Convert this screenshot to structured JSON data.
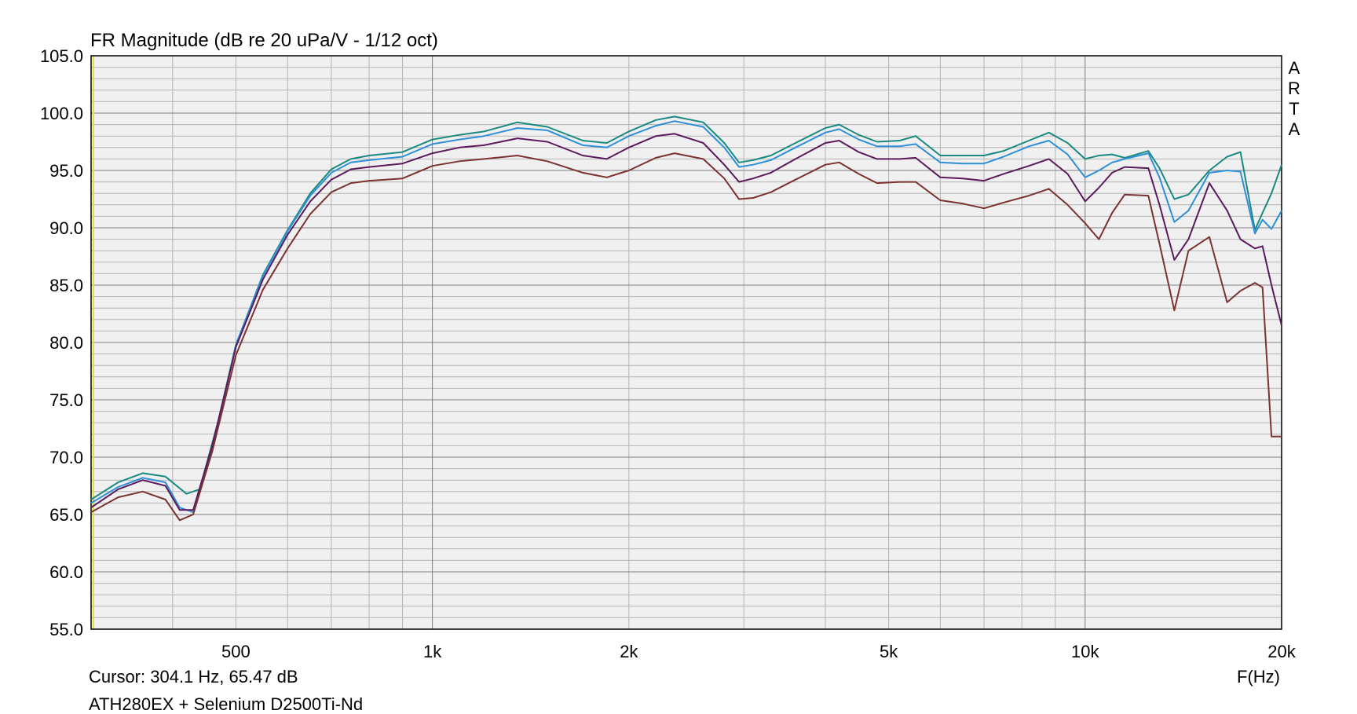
{
  "chart_data": {
    "type": "line",
    "title": "FR Magnitude (dB re 20 uPa/V - 1/12 oct)",
    "xlabel": "F(Hz)",
    "ylabel": "",
    "x_scale": "log",
    "xlim": [
      300,
      20000
    ],
    "ylim": [
      55,
      105
    ],
    "grid": true,
    "x_tick_values": [
      500,
      1000,
      2000,
      5000,
      10000,
      20000
    ],
    "x_tick_labels": [
      "500",
      "1k",
      "2k",
      "5k",
      "10k",
      "20k"
    ],
    "y_tick_values": [
      55,
      60,
      65,
      70,
      75,
      80,
      85,
      90,
      95,
      100,
      105
    ],
    "y_tick_labels": [
      "55.0",
      "60.0",
      "65.0",
      "70.0",
      "75.0",
      "80.0",
      "85.0",
      "90.0",
      "95.0",
      "100.0",
      "105.0"
    ],
    "watermark": "ARTA",
    "cursor_text": "Cursor: 304.1 Hz, 65.47 dB",
    "caption": "ATH280EX + Selenium D2500Ti-Nd",
    "series": [
      {
        "color": "#1a8a80",
        "points": [
          [
            300,
            66.3
          ],
          [
            330,
            67.8
          ],
          [
            360,
            68.6
          ],
          [
            390,
            68.3
          ],
          [
            420,
            66.8
          ],
          [
            440,
            67.2
          ],
          [
            470,
            73.2
          ],
          [
            500,
            79.8
          ],
          [
            550,
            85.9
          ],
          [
            600,
            89.8
          ],
          [
            650,
            93.0
          ],
          [
            700,
            95.1
          ],
          [
            750,
            96.0
          ],
          [
            800,
            96.3
          ],
          [
            900,
            96.6
          ],
          [
            1000,
            97.7
          ],
          [
            1100,
            98.1
          ],
          [
            1200,
            98.4
          ],
          [
            1350,
            99.2
          ],
          [
            1500,
            98.8
          ],
          [
            1700,
            97.6
          ],
          [
            1850,
            97.4
          ],
          [
            2000,
            98.4
          ],
          [
            2200,
            99.4
          ],
          [
            2350,
            99.7
          ],
          [
            2600,
            99.2
          ],
          [
            2800,
            97.4
          ],
          [
            2950,
            95.7
          ],
          [
            3100,
            95.9
          ],
          [
            3300,
            96.3
          ],
          [
            3600,
            97.4
          ],
          [
            4000,
            98.7
          ],
          [
            4200,
            99.0
          ],
          [
            4500,
            98.1
          ],
          [
            4800,
            97.5
          ],
          [
            5200,
            97.6
          ],
          [
            5500,
            98.0
          ],
          [
            6000,
            96.3
          ],
          [
            6500,
            96.3
          ],
          [
            7000,
            96.3
          ],
          [
            7500,
            96.7
          ],
          [
            8200,
            97.6
          ],
          [
            8800,
            98.3
          ],
          [
            9400,
            97.4
          ],
          [
            10000,
            96.0
          ],
          [
            10500,
            96.3
          ],
          [
            11000,
            96.4
          ],
          [
            11500,
            96.1
          ],
          [
            12500,
            96.7
          ],
          [
            13000,
            95.2
          ],
          [
            13700,
            92.5
          ],
          [
            14400,
            92.9
          ],
          [
            15500,
            95.0
          ],
          [
            16500,
            96.2
          ],
          [
            17300,
            96.6
          ],
          [
            18200,
            89.8
          ],
          [
            18700,
            91.3
          ],
          [
            19300,
            93.0
          ],
          [
            20000,
            95.5
          ]
        ]
      },
      {
        "color": "#2e8fd8",
        "points": [
          [
            300,
            66.0
          ],
          [
            330,
            67.4
          ],
          [
            360,
            68.2
          ],
          [
            390,
            67.8
          ],
          [
            410,
            65.6
          ],
          [
            430,
            65.2
          ],
          [
            460,
            70.6
          ],
          [
            500,
            79.8
          ],
          [
            550,
            85.8
          ],
          [
            600,
            89.7
          ],
          [
            650,
            92.8
          ],
          [
            700,
            94.8
          ],
          [
            750,
            95.7
          ],
          [
            800,
            95.9
          ],
          [
            900,
            96.2
          ],
          [
            1000,
            97.3
          ],
          [
            1100,
            97.7
          ],
          [
            1200,
            98.0
          ],
          [
            1350,
            98.7
          ],
          [
            1500,
            98.5
          ],
          [
            1700,
            97.2
          ],
          [
            1850,
            97.0
          ],
          [
            2000,
            98.0
          ],
          [
            2200,
            98.9
          ],
          [
            2350,
            99.3
          ],
          [
            2600,
            98.8
          ],
          [
            2800,
            97.0
          ],
          [
            2950,
            95.3
          ],
          [
            3100,
            95.5
          ],
          [
            3300,
            95.9
          ],
          [
            3600,
            97.0
          ],
          [
            4000,
            98.3
          ],
          [
            4200,
            98.6
          ],
          [
            4500,
            97.7
          ],
          [
            4800,
            97.1
          ],
          [
            5200,
            97.1
          ],
          [
            5500,
            97.3
          ],
          [
            6000,
            95.7
          ],
          [
            6500,
            95.6
          ],
          [
            7000,
            95.6
          ],
          [
            7500,
            96.2
          ],
          [
            8200,
            97.1
          ],
          [
            8800,
            97.6
          ],
          [
            9400,
            96.4
          ],
          [
            10000,
            94.4
          ],
          [
            10500,
            95.0
          ],
          [
            11000,
            95.7
          ],
          [
            11500,
            96.0
          ],
          [
            12500,
            96.5
          ],
          [
            13000,
            94.4
          ],
          [
            13700,
            90.5
          ],
          [
            14400,
            91.5
          ],
          [
            15500,
            94.8
          ],
          [
            16500,
            95.0
          ],
          [
            17300,
            94.9
          ],
          [
            18200,
            89.5
          ],
          [
            18700,
            90.7
          ],
          [
            19300,
            89.9
          ],
          [
            20000,
            91.5
          ]
        ]
      },
      {
        "color": "#5a1a5c",
        "points": [
          [
            300,
            65.6
          ],
          [
            330,
            67.2
          ],
          [
            360,
            68.0
          ],
          [
            390,
            67.5
          ],
          [
            410,
            65.4
          ],
          [
            430,
            65.4
          ],
          [
            460,
            71.0
          ],
          [
            500,
            79.6
          ],
          [
            550,
            85.5
          ],
          [
            600,
            89.4
          ],
          [
            650,
            92.3
          ],
          [
            700,
            94.2
          ],
          [
            750,
            95.1
          ],
          [
            800,
            95.3
          ],
          [
            900,
            95.6
          ],
          [
            1000,
            96.5
          ],
          [
            1100,
            97.0
          ],
          [
            1200,
            97.2
          ],
          [
            1350,
            97.8
          ],
          [
            1500,
            97.5
          ],
          [
            1700,
            96.3
          ],
          [
            1850,
            96.0
          ],
          [
            2000,
            97.0
          ],
          [
            2200,
            98.0
          ],
          [
            2350,
            98.2
          ],
          [
            2600,
            97.4
          ],
          [
            2800,
            95.5
          ],
          [
            2950,
            94.0
          ],
          [
            3100,
            94.3
          ],
          [
            3300,
            94.8
          ],
          [
            3600,
            96.0
          ],
          [
            4000,
            97.4
          ],
          [
            4200,
            97.6
          ],
          [
            4500,
            96.6
          ],
          [
            4800,
            96.0
          ],
          [
            5200,
            96.0
          ],
          [
            5500,
            96.1
          ],
          [
            6000,
            94.4
          ],
          [
            6500,
            94.3
          ],
          [
            7000,
            94.1
          ],
          [
            7500,
            94.7
          ],
          [
            8200,
            95.4
          ],
          [
            8800,
            96.0
          ],
          [
            9400,
            94.7
          ],
          [
            10000,
            92.3
          ],
          [
            10500,
            93.5
          ],
          [
            11000,
            94.8
          ],
          [
            11500,
            95.3
          ],
          [
            12500,
            95.2
          ],
          [
            13000,
            92.0
          ],
          [
            13700,
            87.2
          ],
          [
            14400,
            89.0
          ],
          [
            15500,
            93.9
          ],
          [
            16500,
            91.5
          ],
          [
            17300,
            89.0
          ],
          [
            18200,
            88.2
          ],
          [
            18700,
            88.4
          ],
          [
            19300,
            85.0
          ],
          [
            20000,
            81.5
          ]
        ]
      },
      {
        "color": "#7a3232",
        "points": [
          [
            300,
            65.2
          ],
          [
            330,
            66.5
          ],
          [
            360,
            67.0
          ],
          [
            390,
            66.3
          ],
          [
            410,
            64.5
          ],
          [
            430,
            65.0
          ],
          [
            460,
            70.5
          ],
          [
            500,
            78.9
          ],
          [
            550,
            84.6
          ],
          [
            600,
            88.2
          ],
          [
            650,
            91.2
          ],
          [
            700,
            93.1
          ],
          [
            750,
            93.9
          ],
          [
            800,
            94.1
          ],
          [
            900,
            94.3
          ],
          [
            1000,
            95.4
          ],
          [
            1100,
            95.8
          ],
          [
            1200,
            96.0
          ],
          [
            1350,
            96.3
          ],
          [
            1500,
            95.8
          ],
          [
            1700,
            94.8
          ],
          [
            1850,
            94.4
          ],
          [
            2000,
            95.0
          ],
          [
            2200,
            96.1
          ],
          [
            2350,
            96.5
          ],
          [
            2600,
            96.0
          ],
          [
            2800,
            94.3
          ],
          [
            2950,
            92.5
          ],
          [
            3100,
            92.6
          ],
          [
            3300,
            93.1
          ],
          [
            3600,
            94.2
          ],
          [
            4000,
            95.5
          ],
          [
            4200,
            95.7
          ],
          [
            4500,
            94.7
          ],
          [
            4800,
            93.9
          ],
          [
            5200,
            94.0
          ],
          [
            5500,
            94.0
          ],
          [
            6000,
            92.4
          ],
          [
            6500,
            92.1
          ],
          [
            7000,
            91.7
          ],
          [
            7500,
            92.2
          ],
          [
            8200,
            92.8
          ],
          [
            8800,
            93.4
          ],
          [
            9400,
            92.0
          ],
          [
            10000,
            90.4
          ],
          [
            10500,
            89.0
          ],
          [
            11000,
            91.3
          ],
          [
            11500,
            92.9
          ],
          [
            12500,
            92.8
          ],
          [
            13000,
            88.6
          ],
          [
            13700,
            82.8
          ],
          [
            14400,
            88.0
          ],
          [
            15500,
            89.2
          ],
          [
            16500,
            83.5
          ],
          [
            17300,
            84.5
          ],
          [
            18200,
            85.2
          ],
          [
            18700,
            84.8
          ],
          [
            19300,
            71.8
          ],
          [
            20000,
            71.8
          ]
        ]
      }
    ]
  }
}
